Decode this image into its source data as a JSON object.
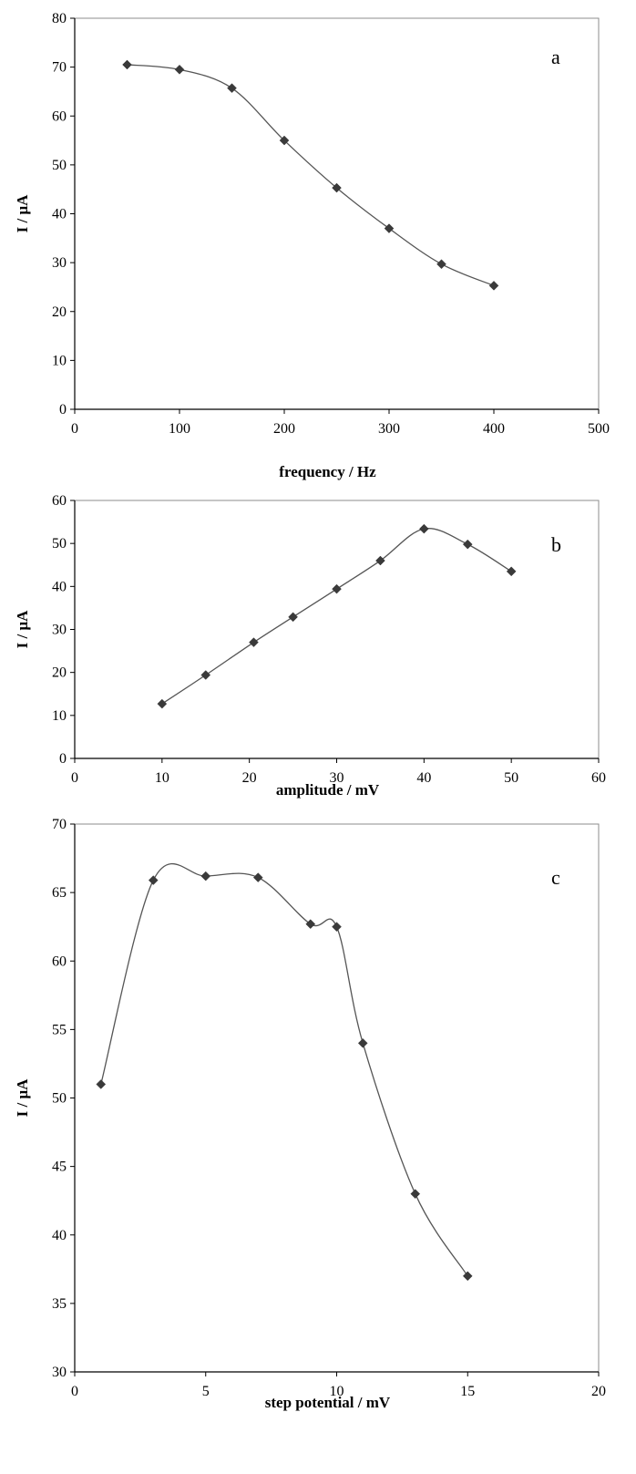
{
  "chart_data": [
    {
      "panel": "a",
      "type": "line",
      "xlabel": "frequency / Hz",
      "ylabel": "I / μA",
      "xlim": [
        0,
        500
      ],
      "ylim": [
        0,
        80
      ],
      "xticks": [
        0,
        100,
        200,
        300,
        400,
        500
      ],
      "yticks": [
        0,
        10,
        20,
        30,
        40,
        50,
        60,
        70,
        80
      ],
      "grid": false,
      "series": [
        {
          "color": "#3a3a3a",
          "marker": "diamond",
          "x": [
            50,
            100,
            150,
            200,
            250,
            300,
            350,
            400
          ],
          "y": [
            70.5,
            69.5,
            65.7,
            55.0,
            45.3,
            37.0,
            29.7,
            25.3
          ]
        }
      ]
    },
    {
      "panel": "b",
      "type": "line",
      "xlabel": "amplitude / mV",
      "ylabel": "I / μA",
      "xlim": [
        0,
        60
      ],
      "ylim": [
        0,
        60
      ],
      "xticks": [
        0,
        10,
        20,
        30,
        40,
        50,
        60
      ],
      "yticks": [
        0,
        10,
        20,
        30,
        40,
        50,
        60
      ],
      "grid": false,
      "series": [
        {
          "color": "#3a3a3a",
          "marker": "diamond",
          "x": [
            10,
            15,
            20.5,
            25,
            30,
            35,
            40,
            45,
            50
          ],
          "y": [
            12.7,
            19.4,
            27.0,
            32.9,
            39.4,
            46.0,
            53.4,
            49.8,
            43.5
          ]
        }
      ]
    },
    {
      "panel": "c",
      "type": "line",
      "xlabel": "step potential  / mV",
      "ylabel": "I / μA",
      "xlim": [
        0,
        20
      ],
      "ylim": [
        30,
        70
      ],
      "xticks": [
        0,
        5,
        10,
        15,
        20
      ],
      "yticks": [
        30,
        35,
        40,
        45,
        50,
        55,
        60,
        65,
        70
      ],
      "grid": false,
      "series": [
        {
          "color": "#3a3a3a",
          "marker": "diamond",
          "x": [
            1,
            3,
            5,
            7,
            9,
            10,
            11,
            13,
            15
          ],
          "y": [
            51.0,
            65.9,
            66.2,
            66.1,
            62.7,
            62.5,
            54.0,
            43.0,
            37.0
          ]
        }
      ]
    }
  ]
}
